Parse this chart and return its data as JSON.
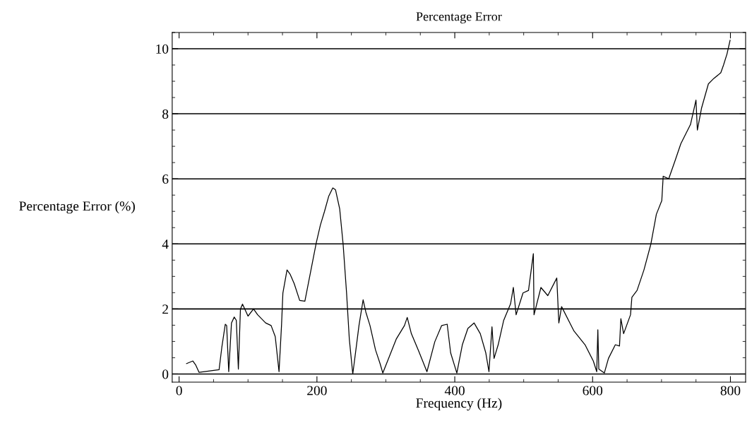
{
  "chart_data": {
    "type": "line",
    "title": "Percentage Error",
    "xlabel": "Frequency (Hz)",
    "ylabel": "Percentage Error (%)",
    "x": [
      10.8,
      20,
      24,
      29,
      58,
      62,
      67,
      69,
      72,
      76,
      80,
      83,
      86,
      89,
      92,
      100,
      108,
      114,
      125.5,
      133.5,
      139.5,
      145,
      148.6,
      150.6,
      156.6,
      161,
      167,
      175,
      182.5,
      191,
      199,
      205,
      211,
      217,
      223,
      227,
      233,
      238,
      243,
      247,
      252,
      257,
      261,
      267,
      271,
      277,
      285,
      291.6,
      295.6,
      315,
      327,
      331,
      337,
      347,
      359.6,
      371,
      381,
      389,
      394,
      403,
      411,
      419,
      428,
      437,
      445,
      449.6,
      454,
      457,
      463,
      471,
      481,
      485,
      489,
      499,
      507,
      514,
      515,
      525,
      535,
      548,
      551,
      555,
      567,
      573,
      589,
      601,
      606,
      607.6,
      609,
      617,
      623,
      633,
      639,
      641,
      645,
      655,
      657,
      664.5,
      674.5,
      684.5,
      692.5,
      700.4,
      702.4,
      710.4,
      720,
      728,
      742,
      750,
      752,
      758,
      768,
      776,
      786,
      790,
      795,
      799.5
    ],
    "series": [
      {
        "color": "#000000",
        "values": [
          0.32,
          0.4,
          0.28,
          0.05,
          0.13,
          0.82,
          1.53,
          1.49,
          0.07,
          1.57,
          1.75,
          1.65,
          0.15,
          1.99,
          2.15,
          1.78,
          2.0,
          1.82,
          1.57,
          1.49,
          1.15,
          0.07,
          1.49,
          2.49,
          3.2,
          3.07,
          2.78,
          2.26,
          2.24,
          3.16,
          4.03,
          4.58,
          5.0,
          5.46,
          5.72,
          5.66,
          5.08,
          3.99,
          2.49,
          1.07,
          0.0,
          0.82,
          1.49,
          2.28,
          1.9,
          1.49,
          0.74,
          0.32,
          0.03,
          1.07,
          1.49,
          1.74,
          1.24,
          0.74,
          0.07,
          0.99,
          1.49,
          1.53,
          0.65,
          0.03,
          0.9,
          1.4,
          1.57,
          1.24,
          0.65,
          0.07,
          1.45,
          0.48,
          0.9,
          1.65,
          2.16,
          2.66,
          1.82,
          2.49,
          2.57,
          3.7,
          1.82,
          2.66,
          2.41,
          2.95,
          1.57,
          2.07,
          1.57,
          1.32,
          0.9,
          0.4,
          0.07,
          1.36,
          0.15,
          0.03,
          0.48,
          0.9,
          0.86,
          1.7,
          1.24,
          1.82,
          2.36,
          2.57,
          3.2,
          3.99,
          4.91,
          5.33,
          6.08,
          6.0,
          6.58,
          7.08,
          7.67,
          8.42,
          7.5,
          8.17,
          8.92,
          9.09,
          9.26,
          9.5,
          9.84,
          10.26
        ]
      }
    ],
    "xlim": [
      -10,
      822
    ],
    "ylim": [
      -0.25,
      10.5
    ],
    "xticks": [
      0,
      200,
      400,
      600,
      800
    ],
    "yticks": [
      0,
      2,
      4,
      6,
      8,
      10
    ],
    "grid": "y",
    "legend": false,
    "marker": "none",
    "line_style": "solid"
  }
}
